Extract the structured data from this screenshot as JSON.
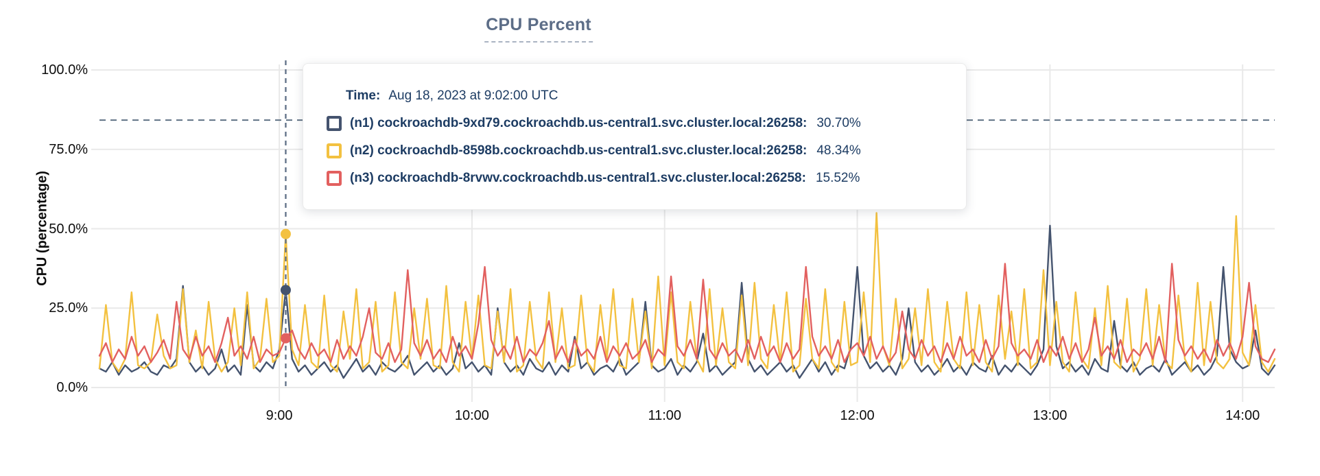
{
  "title": "CPU Percent",
  "y_axis": {
    "title": "CPU (percentage)",
    "ticks": [
      "100.0%",
      "75.0%",
      "50.0%",
      "25.0%",
      "0.0%"
    ]
  },
  "x_axis": {
    "ticks": [
      "9:00",
      "10:00",
      "11:00",
      "12:00",
      "13:00",
      "14:00"
    ]
  },
  "tooltip": {
    "time_label": "Time:",
    "time_value": "Aug 18, 2023 at 9:02:00 UTC",
    "rows": [
      {
        "swatch_color": "#44536e",
        "name": "(n1) cockroachdb-9xd79.cockroachdb.us-central1.svc.cluster.local:26258:",
        "value": "30.70%"
      },
      {
        "swatch_color": "#f3c140",
        "name": "(n2) cockroachdb-8598b.cockroachdb.us-central1.svc.cluster.local:26258:",
        "value": "48.34%"
      },
      {
        "swatch_color": "#e2605f",
        "name": "(n3) cockroachdb-8rvwv.cockroachdb.us-central1.svc.cluster.local:26258:",
        "value": "15.52%"
      }
    ]
  },
  "colors": {
    "title": "#5c6d87",
    "text_navy": "#1d3c63",
    "grid": "#e9e9e9",
    "threshold_line": "#5f7184",
    "hover_line": "#64748b"
  },
  "chart_data": {
    "type": "line",
    "title": "CPU Percent",
    "xlabel": "",
    "ylabel": "CPU (percentage)",
    "ylim": [
      0,
      100
    ],
    "grid": true,
    "x_start_time": "8:04",
    "x_step_minutes": 2,
    "points_per_series": 184,
    "x_tick_labels": [
      "9:00",
      "10:00",
      "11:00",
      "12:00",
      "13:00",
      "14:00"
    ],
    "x_tick_indices": [
      28,
      58,
      88,
      118,
      148,
      178
    ],
    "y_tick_values": [
      100,
      75,
      50,
      25,
      0
    ],
    "threshold_percent": 84.2,
    "hover": {
      "index": 29,
      "time": "Aug 18, 2023 at 9:02:00 UTC"
    },
    "series": [
      {
        "id": "n1",
        "name": "(n1) cockroachdb-9xd79.cockroachdb.us-central1.svc.cluster.local:26258",
        "color": "#44536e",
        "hover_value": 30.7,
        "values": [
          6,
          5,
          8,
          4,
          7,
          5,
          6,
          8,
          5,
          4,
          7,
          6,
          9,
          32,
          8,
          5,
          7,
          4,
          6,
          12,
          5,
          7,
          4,
          26,
          7,
          5,
          8,
          6,
          12,
          30.7,
          9,
          5,
          7,
          4,
          6,
          8,
          5,
          7,
          3,
          6,
          9,
          5,
          7,
          4,
          8,
          6,
          5,
          7,
          10,
          4,
          6,
          8,
          5,
          7,
          4,
          6,
          14,
          6,
          8,
          5,
          7,
          4,
          25,
          8,
          5,
          7,
          4,
          9,
          6,
          5,
          8,
          4,
          7,
          5,
          16,
          6,
          8,
          4,
          6,
          7,
          5,
          9,
          4,
          6,
          8,
          27,
          7,
          5,
          6,
          9,
          4,
          7,
          5,
          8,
          17,
          5,
          7,
          4,
          6,
          8,
          33,
          9,
          5,
          7,
          4,
          6,
          8,
          5,
          7,
          3,
          6,
          9,
          5,
          8,
          4,
          7,
          6,
          13,
          38,
          10,
          6,
          8,
          5,
          7,
          4,
          9,
          25,
          8,
          5,
          7,
          4,
          6,
          9,
          5,
          7,
          4,
          8,
          6,
          5,
          10,
          4,
          7,
          5,
          8,
          6,
          4,
          7,
          12,
          51,
          13,
          6,
          8,
          5,
          7,
          4,
          9,
          6,
          5,
          21,
          7,
          5,
          8,
          4,
          6,
          7,
          5,
          9,
          4,
          6,
          8,
          5,
          7,
          4,
          6,
          10,
          38,
          12,
          8,
          6,
          7,
          18,
          6,
          4,
          7
        ]
      },
      {
        "id": "n2",
        "name": "(n2) cockroachdb-8598b.cockroachdb.us-central1.svc.cluster.local:26258",
        "color": "#f3c140",
        "hover_value": 48.34,
        "values": [
          6,
          26,
          8,
          5,
          9,
          30,
          7,
          6,
          8,
          23,
          10,
          6,
          7,
          31,
          8,
          18,
          6,
          27,
          9,
          5,
          8,
          25,
          7,
          30,
          6,
          9,
          28,
          8,
          10,
          48.34,
          12,
          7,
          26,
          8,
          6,
          29,
          7,
          5,
          24,
          9,
          31,
          6,
          8,
          27,
          5,
          7,
          30,
          8,
          6,
          25,
          9,
          28,
          7,
          6,
          32,
          8,
          5,
          27,
          9,
          29,
          7,
          6,
          24,
          8,
          31,
          5,
          7,
          27,
          9,
          6,
          30,
          8,
          25,
          6,
          7,
          29,
          8,
          5,
          26,
          9,
          31,
          7,
          6,
          28,
          8,
          24,
          6,
          35,
          7,
          30,
          8,
          6,
          27,
          9,
          5,
          31,
          7,
          25,
          8,
          6,
          29,
          7,
          33,
          9,
          6,
          26,
          8,
          30,
          5,
          7,
          28,
          9,
          6,
          31,
          8,
          5,
          27,
          7,
          8,
          30,
          8,
          55,
          13,
          7,
          28,
          6,
          9,
          25,
          7,
          31,
          8,
          5,
          27,
          9,
          6,
          30,
          7,
          26,
          8,
          5,
          29,
          9,
          24,
          7,
          31,
          6,
          8,
          37,
          7,
          27,
          8,
          5,
          30,
          9,
          6,
          25,
          7,
          32,
          8,
          6,
          28,
          5,
          9,
          31,
          7,
          26,
          8,
          6,
          29,
          9,
          5,
          33,
          7,
          27,
          8,
          6,
          9,
          54,
          11,
          7,
          26,
          8,
          5,
          9
        ]
      },
      {
        "id": "n3",
        "name": "(n3) cockroachdb-8rvwv.cockroachdb.us-central1.svc.cluster.local:26258",
        "color": "#e2605f",
        "hover_value": 15.52,
        "values": [
          10,
          14,
          8,
          12,
          9,
          16,
          10,
          13,
          8,
          11,
          15,
          9,
          27,
          12,
          9,
          16,
          10,
          13,
          8,
          14,
          22,
          10,
          13,
          9,
          16,
          8,
          12,
          10,
          11,
          15.52,
          18,
          12,
          9,
          14,
          10,
          12,
          8,
          15,
          9,
          13,
          10,
          16,
          25,
          11,
          9,
          14,
          8,
          12,
          37,
          14,
          10,
          15,
          9,
          12,
          8,
          16,
          10,
          13,
          9,
          20,
          38,
          15,
          10,
          13,
          9,
          16,
          8,
          12,
          10,
          14,
          21,
          9,
          13,
          8,
          15,
          10,
          12,
          9,
          16,
          8,
          13,
          10,
          14,
          9,
          11,
          15,
          8,
          12,
          10,
          35,
          13,
          10,
          15,
          9,
          34,
          12,
          9,
          14,
          10,
          12,
          8,
          15,
          9,
          16,
          10,
          13,
          8,
          14,
          9,
          12,
          38,
          16,
          10,
          13,
          9,
          15,
          8,
          12,
          14,
          10,
          16,
          9,
          13,
          8,
          11,
          24,
          12,
          9,
          15,
          10,
          13,
          8,
          14,
          9,
          16,
          10,
          12,
          8,
          15,
          9,
          13,
          39,
          14,
          10,
          12,
          9,
          15,
          8,
          13,
          10,
          16,
          9,
          14,
          8,
          12,
          22,
          10,
          13,
          9,
          15,
          8,
          12,
          10,
          14,
          9,
          16,
          8,
          39,
          15,
          10,
          13,
          9,
          12,
          8,
          15,
          10,
          14,
          9,
          16,
          33,
          13,
          9,
          8,
          12
        ]
      }
    ]
  }
}
